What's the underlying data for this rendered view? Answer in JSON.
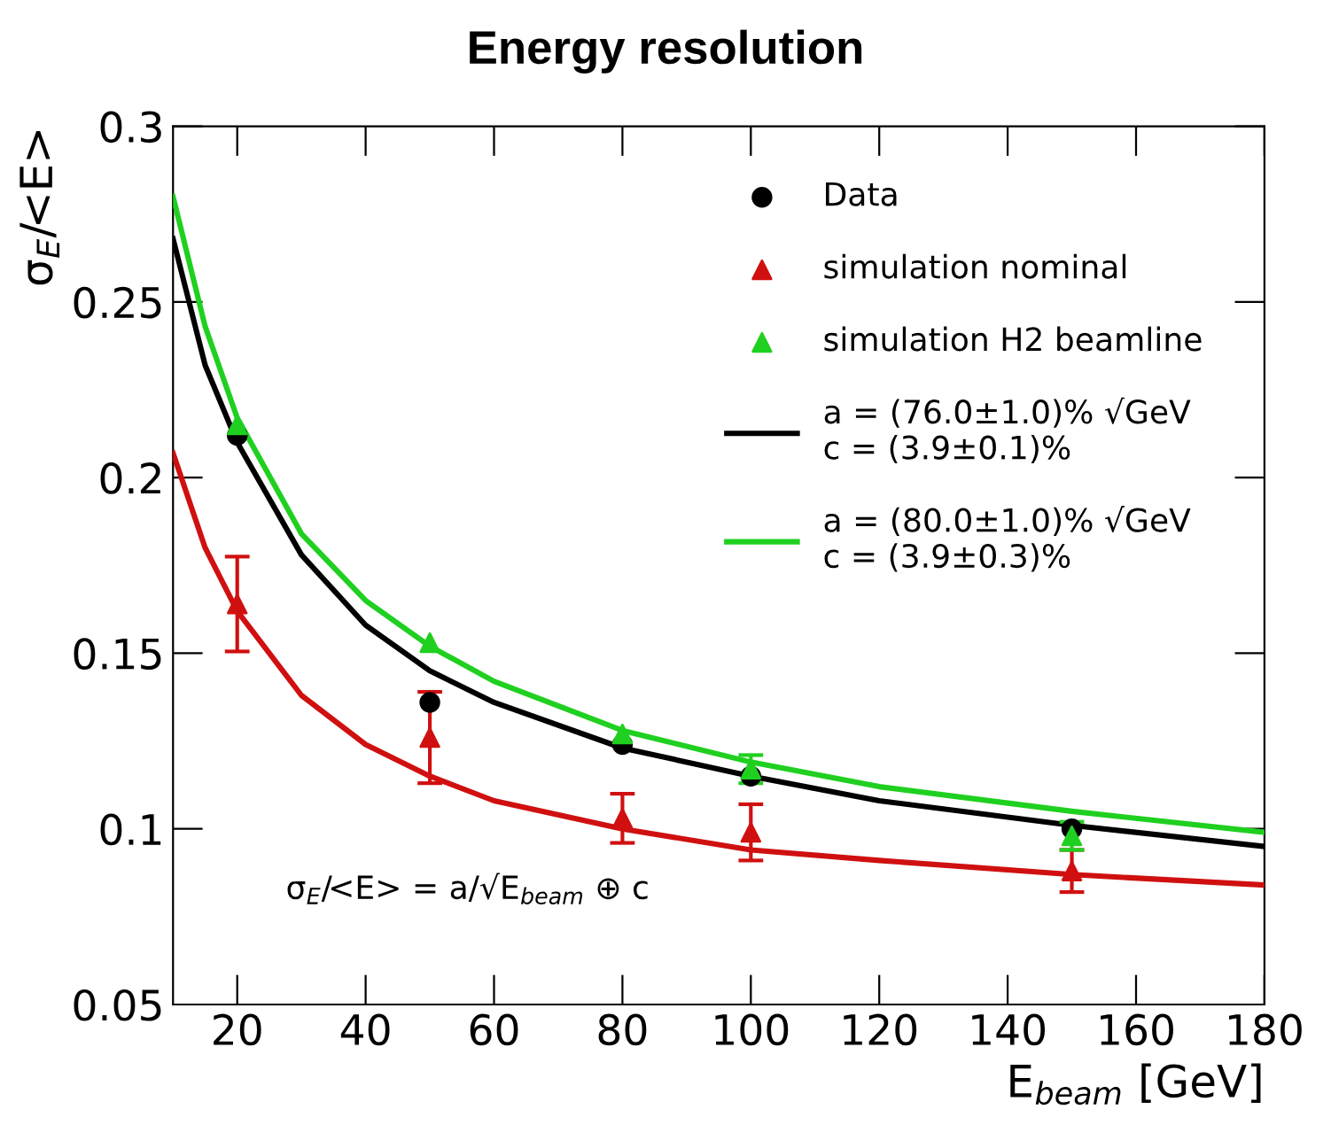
{
  "chart_data": {
    "type": "scatter",
    "title": "Energy resolution",
    "xlabel": "E$_{beam}$ [GeV]",
    "ylabel": "σ$_{E}$/<E>",
    "xlim": [
      10,
      180
    ],
    "xticks": [
      20,
      40,
      60,
      80,
      100,
      120,
      140,
      160,
      180
    ],
    "ylim": [
      0.05,
      0.3
    ],
    "yticks": [
      0.05,
      0.1,
      0.15,
      0.2,
      0.25,
      0.3
    ],
    "grid": false,
    "legend": "top right",
    "annotations": [
      "σ$_{E}$/<E> = a/√E$_{beam}$ ⊕ c"
    ],
    "series": [
      {
        "name": "Data",
        "color": "#000000",
        "marker": "circle",
        "x": [
          20,
          50,
          80,
          100,
          150
        ],
        "values": [
          0.212,
          0.136,
          0.124,
          0.115,
          0.1
        ],
        "errors": [
          null,
          null,
          null,
          null,
          null
        ]
      },
      {
        "name": "simulation nominal",
        "color": "#d01010",
        "marker": "triangle",
        "x": [
          20,
          50,
          80,
          100,
          150
        ],
        "values": [
          0.164,
          0.126,
          0.103,
          0.099,
          0.088
        ],
        "errors": [
          0.0135,
          0.013,
          0.007,
          0.008,
          0.006
        ]
      },
      {
        "name": "simulation H2 beamline",
        "color": "#20d020",
        "marker": "triangle",
        "x": [
          20,
          50,
          80,
          100,
          150
        ],
        "values": [
          0.215,
          0.153,
          0.127,
          0.117,
          0.098
        ],
        "errors": [
          null,
          null,
          null,
          0.004,
          0.004
        ]
      },
      {
        "name": "a = (76.0±1.0)% √GeV\nc = (3.9±0.1)%",
        "type": "line",
        "color": "#000000",
        "x": [
          10,
          15,
          20,
          30,
          40,
          50,
          60,
          80,
          100,
          120,
          150,
          180
        ],
        "values": [
          0.268,
          0.232,
          0.21,
          0.178,
          0.158,
          0.145,
          0.136,
          0.123,
          0.115,
          0.108,
          0.101,
          0.095
        ]
      },
      {
        "name": "a = (80.0±1.0)% √GeV\nc = (3.9±0.3)%",
        "type": "line",
        "color": "#20d020",
        "x": [
          10,
          15,
          20,
          30,
          40,
          50,
          60,
          80,
          100,
          120,
          150,
          180
        ],
        "values": [
          0.28,
          0.243,
          0.217,
          0.184,
          0.165,
          0.152,
          0.142,
          0.128,
          0.119,
          0.112,
          0.105,
          0.099
        ]
      },
      {
        "type": "line",
        "color": "#d01010",
        "x": [
          10,
          15,
          20,
          30,
          40,
          50,
          60,
          80,
          100,
          120,
          150,
          180
        ],
        "values": [
          0.207,
          0.18,
          0.162,
          0.138,
          0.124,
          0.115,
          0.108,
          0.1,
          0.094,
          0.091,
          0.087,
          0.084
        ]
      }
    ]
  }
}
